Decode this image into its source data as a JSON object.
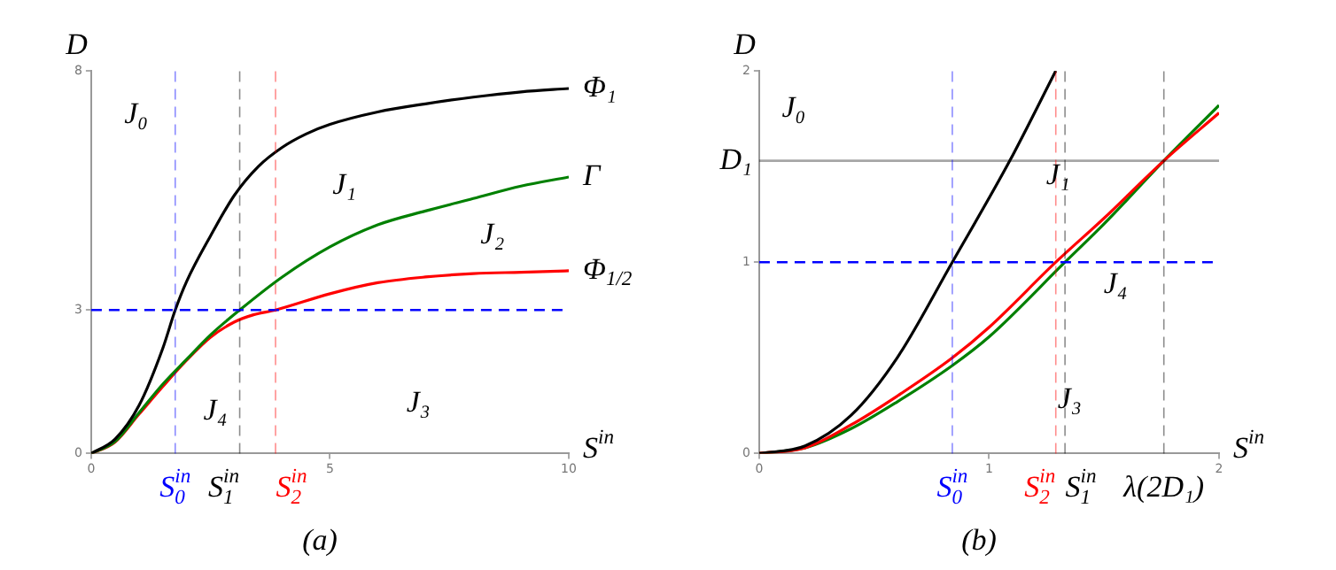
{
  "chart_data": [
    {
      "type": "line",
      "title": "(a)",
      "xlabel": "S$^{in}$",
      "ylabel": "D",
      "xlim": [
        0,
        10
      ],
      "ylim": [
        0,
        8
      ],
      "xticks": [
        0,
        5,
        10
      ],
      "yticks": [
        0,
        3,
        8
      ],
      "marker": "none",
      "series": [
        {
          "name": "Φ₁",
          "color": "#000000",
          "x": [
            0,
            0.5,
            1,
            1.5,
            1.76,
            2,
            2.5,
            3,
            3.5,
            4,
            4.5,
            5,
            6,
            7,
            8,
            9,
            10
          ],
          "values": [
            0,
            0.3,
            1.0,
            2.2,
            3,
            3.6,
            4.55,
            5.4,
            6.0,
            6.4,
            6.68,
            6.88,
            7.14,
            7.31,
            7.45,
            7.56,
            7.63
          ]
        },
        {
          "name": "Γ",
          "color": "#008000",
          "x": [
            0,
            0.5,
            1,
            1.5,
            2,
            2.5,
            3.11,
            4,
            5,
            6,
            7,
            8,
            9,
            10
          ],
          "values": [
            0,
            0.25,
            0.85,
            1.45,
            1.97,
            2.48,
            3,
            3.69,
            4.32,
            4.78,
            5.07,
            5.33,
            5.59,
            5.78
          ]
        },
        {
          "name": "Φ$_{1/2}$",
          "color": "#ff0000",
          "x": [
            0,
            0.5,
            1,
            1.5,
            2,
            2.5,
            3,
            3.4,
            3.86,
            5,
            6,
            7,
            8,
            9,
            10
          ],
          "values": [
            0,
            0.24,
            0.82,
            1.4,
            1.95,
            2.43,
            2.75,
            2.9,
            3,
            3.34,
            3.57,
            3.69,
            3.76,
            3.79,
            3.82
          ]
        }
      ],
      "ref_lines": [
        {
          "axis": "y",
          "value": 3,
          "color": "#0000ff",
          "line_style": "dashed"
        },
        {
          "axis": "x",
          "value": 1.76,
          "label": "S$_{0}$$^{in}$",
          "color": "#0000ff",
          "line_style": "dashed"
        },
        {
          "axis": "x",
          "value": 3.11,
          "label": "S$_{1}$$^{in}$",
          "color": "#000000",
          "line_style": "dashed"
        },
        {
          "axis": "x",
          "value": 3.86,
          "label": "S$_{2}$$^{in}$",
          "color": "#ff0000",
          "line_style": "dashed"
        }
      ],
      "annotations": [
        "J₀",
        "J₁",
        "J₂",
        "J₃",
        "J₄"
      ]
    },
    {
      "type": "line",
      "title": "(b)",
      "xlabel": "S$^{in}$",
      "ylabel": "D",
      "xlim": [
        0,
        2
      ],
      "ylim": [
        0,
        2
      ],
      "xticks": [
        0,
        1,
        2
      ],
      "yticks": [
        0,
        1,
        2
      ],
      "marker": "none",
      "series": [
        {
          "color": "#000000",
          "x": [
            0,
            0.2,
            0.4,
            0.6,
            0.84,
            1.09,
            1.29
          ],
          "values": [
            0,
            0.04,
            0.2,
            0.5,
            1,
            1.53,
            2
          ]
        },
        {
          "color": "#ff0000",
          "x": [
            0,
            0.2,
            0.4,
            0.6,
            0.84,
            1.0,
            1.29,
            1.5,
            1.76,
            2
          ],
          "values": [
            0,
            0.03,
            0.15,
            0.3,
            0.5,
            0.66,
            1.0,
            1.23,
            1.53,
            1.78
          ]
        },
        {
          "color": "#008000",
          "x": [
            0,
            0.2,
            0.4,
            0.6,
            0.84,
            1.0,
            1.33,
            1.5,
            1.76,
            2
          ],
          "values": [
            0,
            0.03,
            0.13,
            0.27,
            0.46,
            0.61,
            1.0,
            1.2,
            1.53,
            1.82
          ]
        }
      ],
      "ref_lines": [
        {
          "axis": "y",
          "value": 1,
          "color": "#0000ff",
          "line_style": "dashed"
        },
        {
          "axis": "y",
          "value": 1.53,
          "label": "D₁",
          "color": "#000000",
          "line_style": "solid"
        },
        {
          "axis": "x",
          "value": 0.84,
          "label": "S$_{0}$$^{in}$",
          "color": "#0000ff",
          "line_style": "dashed"
        },
        {
          "axis": "x",
          "value": 1.29,
          "label": "S$_{2}$$^{in}$",
          "color": "#ff0000",
          "line_style": "dashed"
        },
        {
          "axis": "x",
          "value": 1.33,
          "label": "S$_{1}$$^{in}$",
          "color": "#000000",
          "line_style": "dashed"
        },
        {
          "axis": "x",
          "value": 1.76,
          "label": "λ(2D₁)",
          "color": "#000000",
          "line_style": "dashed"
        }
      ],
      "annotations": [
        "J₀",
        "J₁",
        "J₃",
        "J₄"
      ]
    }
  ]
}
